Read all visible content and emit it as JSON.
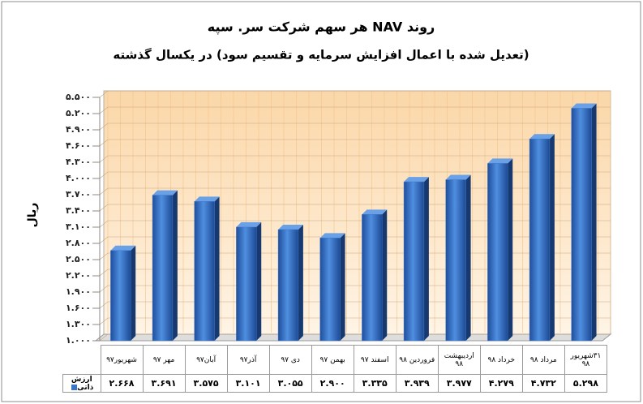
{
  "chart_data": {
    "type": "bar",
    "title": "روند NAV هر سهم شرکت سر. سپه",
    "subtitle": "(تعدیل شده با اعمال افزایش سرمایه و تقسیم سود) در یکسال گذشته",
    "y_label": "ریال",
    "categories": [
      "شهریور۹۷",
      "مهر ۹۷",
      "آبان۹۷",
      "آذر۹۷",
      "دی ۹۷",
      "بهمن ۹۷",
      "اسفند ۹۷",
      "فروردین ۹۸",
      "اردیبهشت ۹۸",
      "خرداد ۹۸",
      "مرداد ۹۸",
      "۳۱شهریور ۹۸"
    ],
    "series": [
      {
        "name": "ارزش ذاتی",
        "color": "#3a75c8",
        "values": [
          2668,
          3691,
          3575,
          3101,
          3055,
          2900,
          3335,
          3939,
          3977,
          4279,
          4732,
          5298
        ],
        "value_labels": [
          "۲.۶۶۸",
          "۳.۶۹۱",
          "۳.۵۷۵",
          "۳.۱۰۱",
          "۳.۰۵۵",
          "۲.۹۰۰",
          "۳.۳۳۵",
          "۳.۹۳۹",
          "۳.۹۷۷",
          "۴.۲۷۹",
          "۴.۷۳۲",
          "۵.۲۹۸"
        ]
      }
    ],
    "ylim": [
      1000,
      5500
    ],
    "yticks": [
      {
        "value": 1000,
        "label": "۱.۰۰۰"
      },
      {
        "value": 1300,
        "label": "۱.۳۰۰"
      },
      {
        "value": 1600,
        "label": "۱.۶۰۰"
      },
      {
        "value": 1900,
        "label": "۱.۹۰۰"
      },
      {
        "value": 2200,
        "label": "۲.۲۰۰"
      },
      {
        "value": 2500,
        "label": "۲.۵۰۰"
      },
      {
        "value": 2800,
        "label": "۲.۸۰۰"
      },
      {
        "value": 3100,
        "label": "۳.۱۰۰"
      },
      {
        "value": 3400,
        "label": "۳.۴۰۰"
      },
      {
        "value": 3700,
        "label": "۳.۷۰۰"
      },
      {
        "value": 4000,
        "label": "۴.۰۰۰"
      },
      {
        "value": 4300,
        "label": "۴.۳۰۰"
      },
      {
        "value": 4600,
        "label": "۴.۶۰۰"
      },
      {
        "value": 4900,
        "label": "۴.۹۰۰"
      },
      {
        "value": 5200,
        "label": "۵.۲۰۰"
      },
      {
        "value": 5500,
        "label": "۵.۵۰۰"
      }
    ],
    "grid": true
  }
}
